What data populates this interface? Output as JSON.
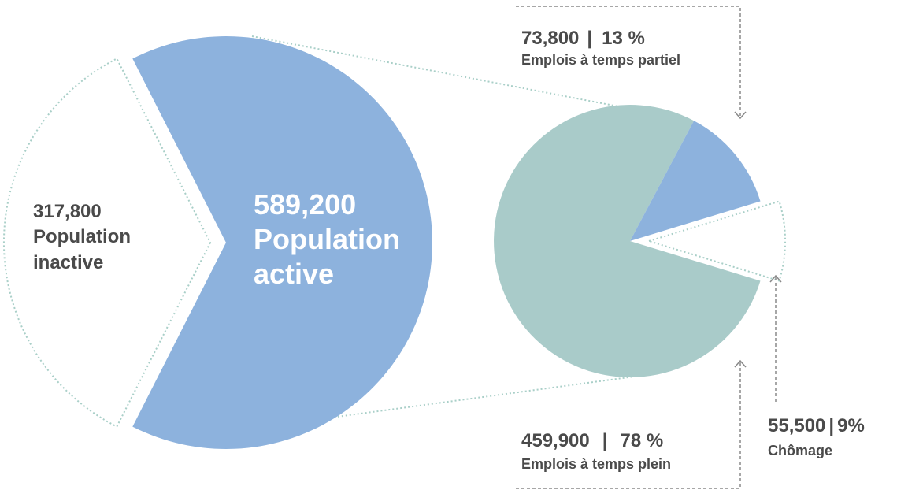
{
  "chart_data": [
    {
      "type": "pie",
      "slices": [
        {
          "value": "589,200",
          "label_line1": "Population",
          "label_line2": "active",
          "amount": 589200,
          "color": "#8db2dd",
          "exploded": false
        },
        {
          "value": "317,800",
          "label_line1": "Population",
          "label_line2": "inactive",
          "amount": 317800,
          "color": "none",
          "outline": "#a9cfc8",
          "exploded": true
        }
      ]
    },
    {
      "type": "pie",
      "breakdown_of": "589,200",
      "slices": [
        {
          "amount_text": "459,900",
          "percent_text": "78 %",
          "name": "Emplois à temps plein",
          "amount": 459900,
          "percent": 78,
          "color": "#a9cbc9"
        },
        {
          "amount_text": "73,800",
          "percent_text": "13 %",
          "name": "Emplois à temps partiel",
          "amount": 73800,
          "percent": 13,
          "color": "#8db2dd"
        },
        {
          "amount_text": "55,500",
          "percent_text": "9%",
          "name": "Chômage",
          "amount": 55500,
          "percent": 9,
          "color": "none",
          "outline": "#a9cfc8",
          "exploded": true
        }
      ]
    }
  ],
  "colors": {
    "active_blue": "#8db2dd",
    "teal": "#a9cbc9",
    "dotted_outline": "#a9cfc8",
    "annotation_gray": "#8a8a8a",
    "label_dark": "#4a4a4a",
    "label_white": "#ffffff"
  }
}
